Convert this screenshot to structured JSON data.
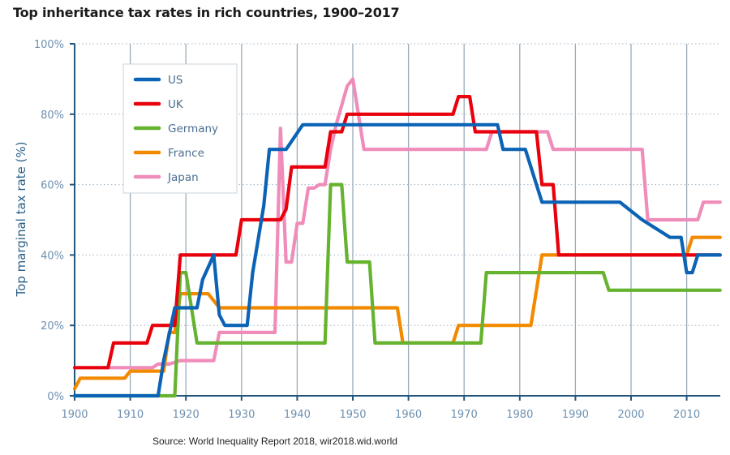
{
  "chart_data": {
    "type": "line",
    "title": "Top inheritance tax rates in rich countries, 1900–2017",
    "xlabel": "",
    "ylabel": "Top marginal tax rate (%)",
    "xlim": [
      1900,
      2016
    ],
    "ylim": [
      0,
      100
    ],
    "x_ticks": [
      1900,
      1910,
      1920,
      1930,
      1940,
      1950,
      1960,
      1970,
      1980,
      1990,
      2000,
      2010
    ],
    "y_ticks": [
      0,
      20,
      40,
      60,
      80,
      100
    ],
    "y_tick_labels": [
      "0%",
      "20%",
      "40%",
      "60%",
      "80%",
      "100%"
    ],
    "grid": "vertical solid, horizontal dotted",
    "legend_position": "top-left",
    "source": "Source: World Inequality Report 2018, wir2018.wid.world",
    "series": [
      {
        "name": "US",
        "color": "#0b63b5",
        "points": [
          [
            1900,
            0
          ],
          [
            1915,
            0
          ],
          [
            1916,
            10
          ],
          [
            1918,
            25
          ],
          [
            1922,
            25
          ],
          [
            1923,
            33
          ],
          [
            1925,
            40
          ],
          [
            1926,
            23
          ],
          [
            1927,
            20
          ],
          [
            1931,
            20
          ],
          [
            1932,
            35
          ],
          [
            1934,
            54
          ],
          [
            1935,
            70
          ],
          [
            1938,
            70
          ],
          [
            1941,
            77
          ],
          [
            1976,
            77
          ],
          [
            1977,
            70
          ],
          [
            1981,
            70
          ],
          [
            1984,
            55
          ],
          [
            1998,
            55
          ],
          [
            2002,
            50
          ],
          [
            2007,
            45
          ],
          [
            2009,
            45
          ],
          [
            2010,
            35
          ],
          [
            2011,
            35
          ],
          [
            2012,
            40
          ],
          [
            2016,
            40
          ]
        ]
      },
      {
        "name": "UK",
        "color": "#e8000d",
        "points": [
          [
            1900,
            8
          ],
          [
            1906,
            8
          ],
          [
            1907,
            15
          ],
          [
            1913,
            15
          ],
          [
            1914,
            20
          ],
          [
            1918,
            20
          ],
          [
            1919,
            40
          ],
          [
            1929,
            40
          ],
          [
            1930,
            50
          ],
          [
            1937,
            50
          ],
          [
            1938,
            53
          ],
          [
            1939,
            65
          ],
          [
            1945,
            65
          ],
          [
            1946,
            75
          ],
          [
            1948,
            75
          ],
          [
            1949,
            80
          ],
          [
            1968,
            80
          ],
          [
            1969,
            85
          ],
          [
            1971,
            85
          ],
          [
            1972,
            75
          ],
          [
            1983,
            75
          ],
          [
            1984,
            60
          ],
          [
            1986,
            60
          ],
          [
            1987,
            40
          ],
          [
            2016,
            40
          ]
        ]
      },
      {
        "name": "Germany",
        "color": "#65b32e",
        "points": [
          [
            1900,
            0
          ],
          [
            1915,
            0
          ],
          [
            1918,
            0
          ],
          [
            1919,
            35
          ],
          [
            1920,
            35
          ],
          [
            1922,
            15
          ],
          [
            1945,
            15
          ],
          [
            1946,
            60
          ],
          [
            1948,
            60
          ],
          [
            1949,
            38
          ],
          [
            1953,
            38
          ],
          [
            1954,
            15
          ],
          [
            1973,
            15
          ],
          [
            1974,
            35
          ],
          [
            1995,
            35
          ],
          [
            1996,
            30
          ],
          [
            2016,
            30
          ]
        ]
      },
      {
        "name": "France",
        "color": "#f28a00",
        "points": [
          [
            1900,
            2
          ],
          [
            1901,
            5
          ],
          [
            1909,
            5
          ],
          [
            1910,
            7
          ],
          [
            1916,
            7
          ],
          [
            1917,
            18
          ],
          [
            1918,
            18
          ],
          [
            1919,
            29
          ],
          [
            1924,
            29
          ],
          [
            1926,
            25
          ],
          [
            1958,
            25
          ],
          [
            1959,
            15
          ],
          [
            1968,
            15
          ],
          [
            1969,
            20
          ],
          [
            1982,
            20
          ],
          [
            1984,
            40
          ],
          [
            1994,
            40
          ],
          [
            2000,
            40
          ],
          [
            2010,
            40
          ],
          [
            2011,
            45
          ],
          [
            2016,
            45
          ]
        ]
      },
      {
        "name": "Japan",
        "color": "#f08cba",
        "points": [
          [
            1905,
            8
          ],
          [
            1914,
            8
          ],
          [
            1915,
            9
          ],
          [
            1917,
            9
          ],
          [
            1919,
            10
          ],
          [
            1925,
            10
          ],
          [
            1926,
            18
          ],
          [
            1936,
            18
          ],
          [
            1937,
            76
          ],
          [
            1938,
            38
          ],
          [
            1939,
            38
          ],
          [
            1940,
            49
          ],
          [
            1941,
            49
          ],
          [
            1942,
            59
          ],
          [
            1943,
            59
          ],
          [
            1944,
            60
          ],
          [
            1945,
            60
          ],
          [
            1946,
            70
          ],
          [
            1947,
            77
          ],
          [
            1949,
            88
          ],
          [
            1950,
            90
          ],
          [
            1952,
            70
          ],
          [
            1974,
            70
          ],
          [
            1975,
            75
          ],
          [
            1985,
            75
          ],
          [
            1986,
            70
          ],
          [
            2002,
            70
          ],
          [
            2003,
            50
          ],
          [
            2012,
            50
          ],
          [
            2013,
            55
          ],
          [
            2016,
            55
          ]
        ]
      }
    ]
  }
}
